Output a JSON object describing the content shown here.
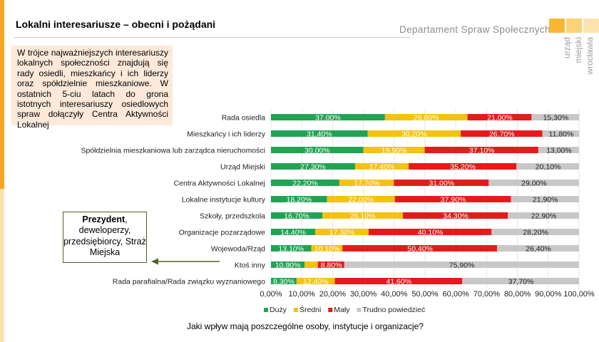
{
  "header": {
    "title": "Lokalni interesariusze – obecni i pożądani",
    "department": "Departament Spraw Społecznych",
    "logo_lines": [
      "urząd",
      "miejski",
      "wrocławia"
    ]
  },
  "info_box": {
    "text": "W trójce najważniejszych interesariuszy lokalnych społeczności znajdują się rady osiedli, mieszkańcy i ich liderzy oraz spółdzielnie mieszkaniowe. W ostatnich 5-ciu latach do grona istotnych interesariuszy osiedlowych spraw dołączyły Centra Aktywności Lokalnej"
  },
  "callout": {
    "bold": "Prezydent",
    "rest": ", deweloperzy, przedsiębiorcy, Straż Miejska"
  },
  "question": "Jaki wpływ mają poszczególne osoby, instytucje i organizacje?",
  "colors": {
    "accent": "#f5a623",
    "accent_light": "#fbe3b0",
    "info_bg": "#fde9d9",
    "series": [
      "#21a353",
      "#f5c211",
      "#e31b1b",
      "#c8c8c8"
    ],
    "gap_marker": "#f4b9c4"
  },
  "chart_data": {
    "type": "bar",
    "orientation": "horizontal",
    "stacked": true,
    "categories": [
      "Rada osiedla",
      "Mieszkańcy i ich liderzy",
      "Spółdzielnia mieszkaniowa lub zarządca nieruchomości",
      "Urząd Miejski",
      "Centra Aktywności Lokalnej",
      "Lokalne instytucje kultury",
      "Szkoły, przedszkola",
      "Organizacje pozarządowe",
      "Wojewoda/Rząd",
      "Ktoś inny",
      "Rada parafialna/Rada związku wyznaniowego"
    ],
    "series": [
      {
        "name": "Duży",
        "values": [
          37.0,
          31.4,
          30.0,
          27.3,
          22.2,
          18.2,
          16.7,
          14.4,
          13.1,
          10.9,
          8.3
        ],
        "labels": [
          "37,00%",
          "31,40%",
          "30,00%",
          "27,30%",
          "22,20%",
          "18,20%",
          "16,70%",
          "14,40%",
          "13,10%",
          "10,90%",
          "8,30%"
        ]
      },
      {
        "name": "Średni",
        "values": [
          26.8,
          30.2,
          19.9,
          17.4,
          17.7,
          22.0,
          26.1,
          17.3,
          10.1,
          4.3,
          12.4
        ],
        "labels": [
          "26,80%",
          "30,20%",
          "19,90%",
          "17,40%",
          "17,70%",
          "22,00%",
          "26,10%",
          "17,30%",
          "10,10%",
          "",
          "12,40%"
        ]
      },
      {
        "name": "Mały",
        "values": [
          21.0,
          26.7,
          37.1,
          35.2,
          31.0,
          37.9,
          34.3,
          40.1,
          50.4,
          8.8,
          41.6
        ],
        "labels": [
          "21,00%",
          "26,70%",
          "37,10%",
          "35,20%",
          "31,00%",
          "37,90%",
          "34,30%",
          "40,10%",
          "50,40%",
          "8,80%",
          "41,60%"
        ]
      },
      {
        "name": "Trudno powiedzieć",
        "values": [
          15.3,
          11.8,
          13.0,
          20.1,
          29.0,
          21.9,
          22.9,
          28.2,
          26.4,
          75.9,
          37.7
        ],
        "labels": [
          "15,30%",
          "11,80%",
          "13,00%",
          "20,10%",
          "29,00%",
          "21,90%",
          "22,90%",
          "28,20%",
          "26,40%",
          "75,90%",
          "37,70%"
        ]
      }
    ],
    "xlim": [
      0,
      100
    ],
    "xticks": [
      "0,00%",
      "10,00%",
      "20,00%",
      "30,00%",
      "40,00%",
      "50,00%",
      "60,00%",
      "70,00%",
      "80,00%",
      "90,00%",
      "100,00%"
    ],
    "grid": true,
    "legend_position": "bottom"
  }
}
